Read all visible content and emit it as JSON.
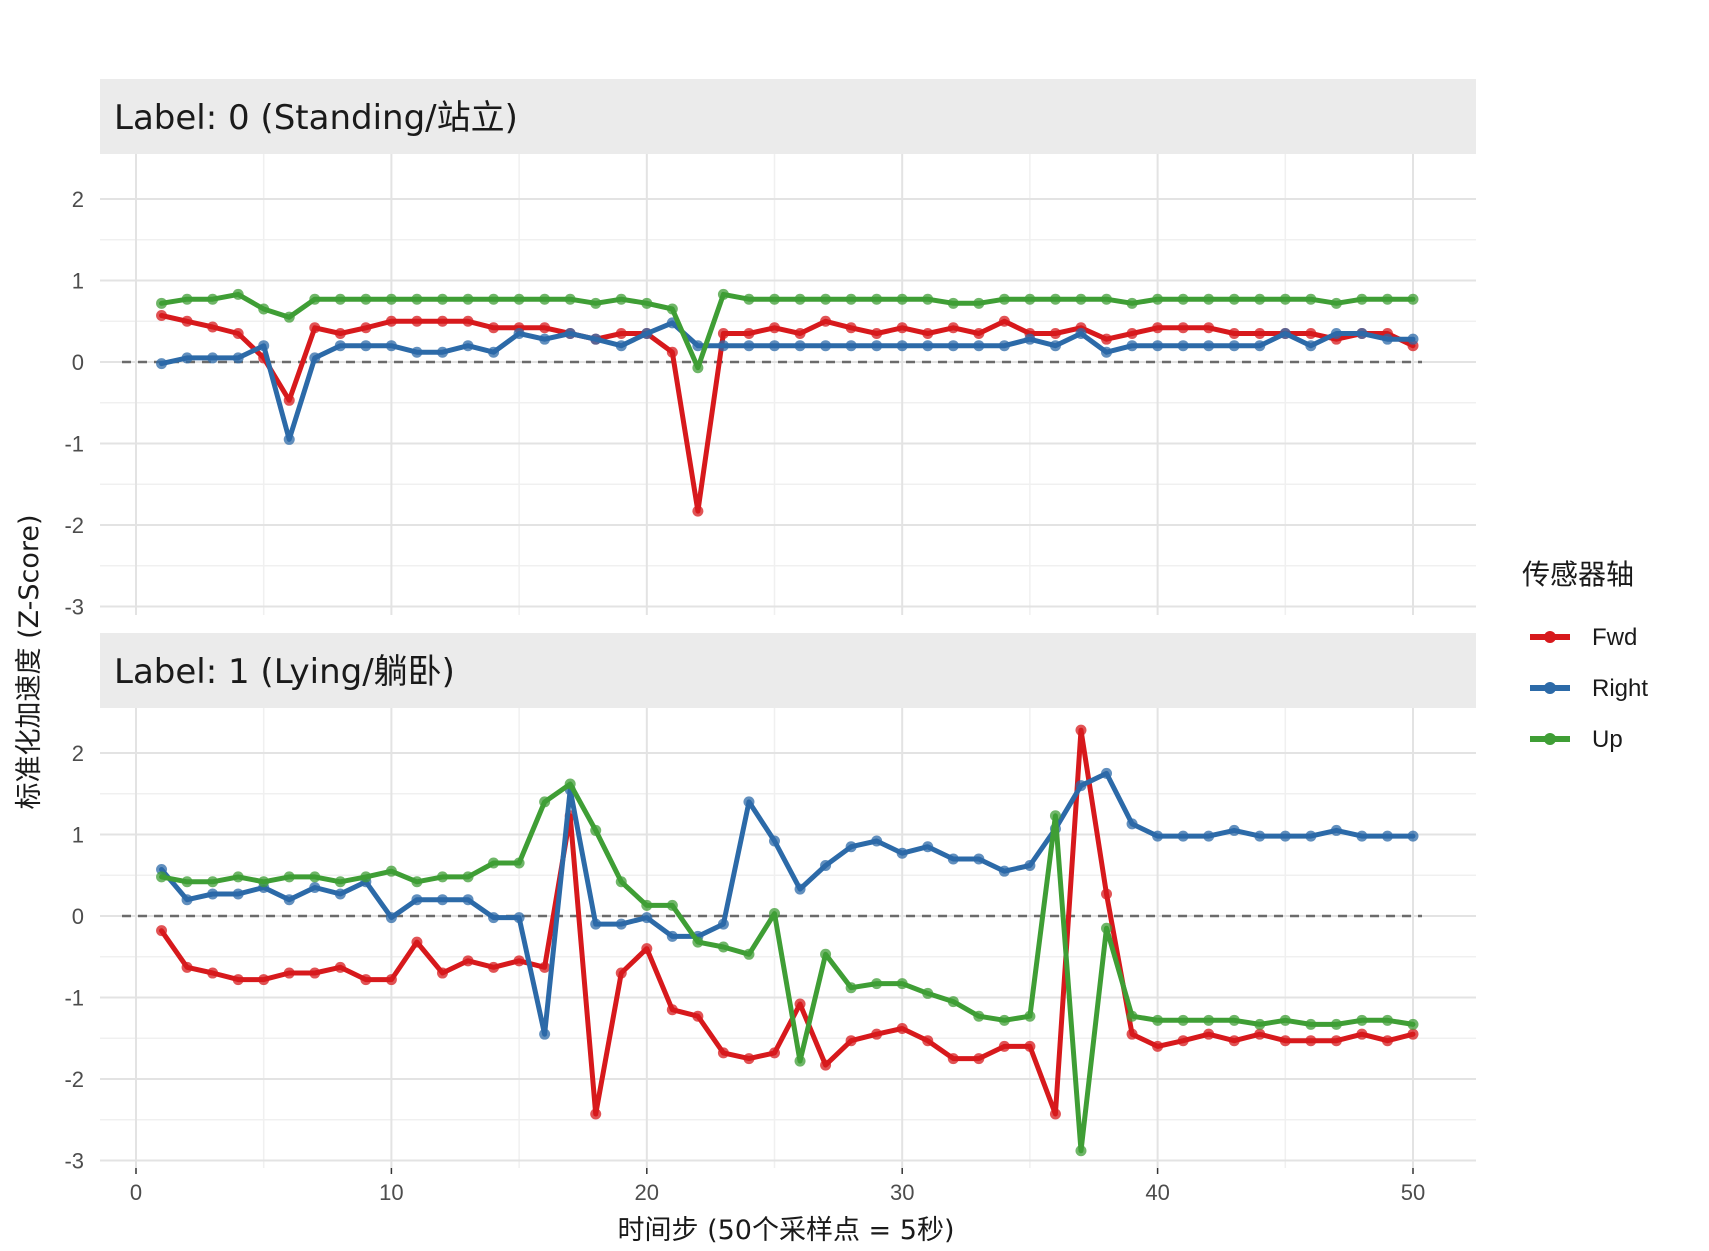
{
  "chart_data": {
    "type": "line",
    "facet_titles": [
      "Label: 0 (Standing/站立)",
      "Label: 1 (Lying/躺卧)"
    ],
    "xlabel": "时间步 (50个采样点 = 5秒)",
    "ylabel": "标准化加速度 (Z-Score)",
    "xlim": [
      0,
      50
    ],
    "ylim": [
      -3,
      2.3
    ],
    "x_ticks": [
      0,
      10,
      20,
      30,
      40,
      50
    ],
    "y_ticks": [
      -3,
      -2,
      -1,
      0,
      1,
      2
    ],
    "reference_line_y": 0,
    "grid": true,
    "legend": {
      "title": "传感器轴",
      "position": "right",
      "entries": [
        "Fwd",
        "Right",
        "Up"
      ]
    },
    "colors": {
      "Fwd": "#d7191c",
      "Right": "#2c6aa8",
      "Up": "#3f9e35"
    },
    "x": [
      1,
      2,
      3,
      4,
      5,
      6,
      7,
      8,
      9,
      10,
      11,
      12,
      13,
      14,
      15,
      16,
      17,
      18,
      19,
      20,
      21,
      22,
      23,
      24,
      25,
      26,
      27,
      28,
      29,
      30,
      31,
      32,
      33,
      34,
      35,
      36,
      37,
      38,
      39,
      40,
      41,
      42,
      43,
      44,
      45,
      46,
      47,
      48,
      49,
      50
    ],
    "panels": [
      {
        "series": [
          {
            "name": "Fwd",
            "values": [
              0.57,
              0.5,
              0.43,
              0.35,
              0.05,
              -0.47,
              0.42,
              0.35,
              0.42,
              0.5,
              0.5,
              0.5,
              0.5,
              0.42,
              0.42,
              0.42,
              0.35,
              0.28,
              0.35,
              0.35,
              0.12,
              -1.83,
              0.35,
              0.35,
              0.42,
              0.35,
              0.5,
              0.42,
              0.35,
              0.42,
              0.35,
              0.42,
              0.35,
              0.5,
              0.35,
              0.35,
              0.42,
              0.28,
              0.35,
              0.42,
              0.42,
              0.42,
              0.35,
              0.35,
              0.35,
              0.35,
              0.28,
              0.35,
              0.35,
              0.2
            ]
          },
          {
            "name": "Right",
            "values": [
              -0.02,
              0.05,
              0.05,
              0.05,
              0.2,
              -0.95,
              0.05,
              0.2,
              0.2,
              0.2,
              0.12,
              0.12,
              0.2,
              0.12,
              0.35,
              0.28,
              0.35,
              0.28,
              0.2,
              0.35,
              0.48,
              0.2,
              0.2,
              0.2,
              0.2,
              0.2,
              0.2,
              0.2,
              0.2,
              0.2,
              0.2,
              0.2,
              0.2,
              0.2,
              0.28,
              0.2,
              0.35,
              0.12,
              0.2,
              0.2,
              0.2,
              0.2,
              0.2,
              0.2,
              0.35,
              0.2,
              0.35,
              0.35,
              0.28,
              0.28
            ]
          },
          {
            "name": "Up",
            "values": [
              0.72,
              0.77,
              0.77,
              0.83,
              0.65,
              0.55,
              0.77,
              0.77,
              0.77,
              0.77,
              0.77,
              0.77,
              0.77,
              0.77,
              0.77,
              0.77,
              0.77,
              0.72,
              0.77,
              0.72,
              0.65,
              -0.07,
              0.83,
              0.77,
              0.77,
              0.77,
              0.77,
              0.77,
              0.77,
              0.77,
              0.77,
              0.72,
              0.72,
              0.77,
              0.77,
              0.77,
              0.77,
              0.77,
              0.72,
              0.77,
              0.77,
              0.77,
              0.77,
              0.77,
              0.77,
              0.77,
              0.72,
              0.77,
              0.77,
              0.77
            ]
          }
        ]
      },
      {
        "series": [
          {
            "name": "Fwd",
            "values": [
              -0.18,
              -0.63,
              -0.7,
              -0.78,
              -0.78,
              -0.7,
              -0.7,
              -0.63,
              -0.78,
              -0.78,
              -0.32,
              -0.7,
              -0.55,
              -0.63,
              -0.55,
              -0.63,
              1.23,
              -2.43,
              -0.7,
              -0.4,
              -1.15,
              -1.23,
              -1.68,
              -1.75,
              -1.68,
              -1.08,
              -1.83,
              -1.53,
              -1.45,
              -1.38,
              -1.53,
              -1.75,
              -1.75,
              -1.6,
              -1.6,
              -2.43,
              2.28,
              0.27,
              -1.45,
              -1.6,
              -1.53,
              -1.45,
              -1.53,
              -1.45,
              -1.53,
              -1.53,
              -1.53,
              -1.45,
              -1.53,
              -1.45
            ]
          },
          {
            "name": "Right",
            "values": [
              0.57,
              0.2,
              0.27,
              0.27,
              0.35,
              0.2,
              0.35,
              0.27,
              0.42,
              -0.02,
              0.2,
              0.2,
              0.2,
              -0.02,
              -0.02,
              -1.45,
              1.55,
              -0.1,
              -0.1,
              -0.02,
              -0.25,
              -0.25,
              -0.1,
              1.4,
              0.92,
              0.33,
              0.62,
              0.85,
              0.92,
              0.77,
              0.85,
              0.7,
              0.7,
              0.55,
              0.62,
              1.07,
              1.6,
              1.75,
              1.13,
              0.98,
              0.98,
              0.98,
              1.05,
              0.98,
              0.98,
              0.98,
              1.05,
              0.98,
              0.98,
              0.98
            ]
          },
          {
            "name": "Up",
            "values": [
              0.48,
              0.42,
              0.42,
              0.48,
              0.42,
              0.48,
              0.48,
              0.42,
              0.48,
              0.55,
              0.42,
              0.48,
              0.48,
              0.65,
              0.65,
              1.4,
              1.62,
              1.05,
              0.42,
              0.13,
              0.13,
              -0.32,
              -0.38,
              -0.47,
              0.03,
              -1.78,
              -0.47,
              -0.88,
              -0.83,
              -0.83,
              -0.95,
              -1.05,
              -1.23,
              -1.28,
              -1.23,
              1.23,
              -2.88,
              -0.15,
              -1.23,
              -1.28,
              -1.28,
              -1.28,
              -1.28,
              -1.33,
              -1.28,
              -1.33,
              -1.33,
              -1.28,
              -1.28,
              -1.33
            ]
          }
        ]
      }
    ]
  }
}
